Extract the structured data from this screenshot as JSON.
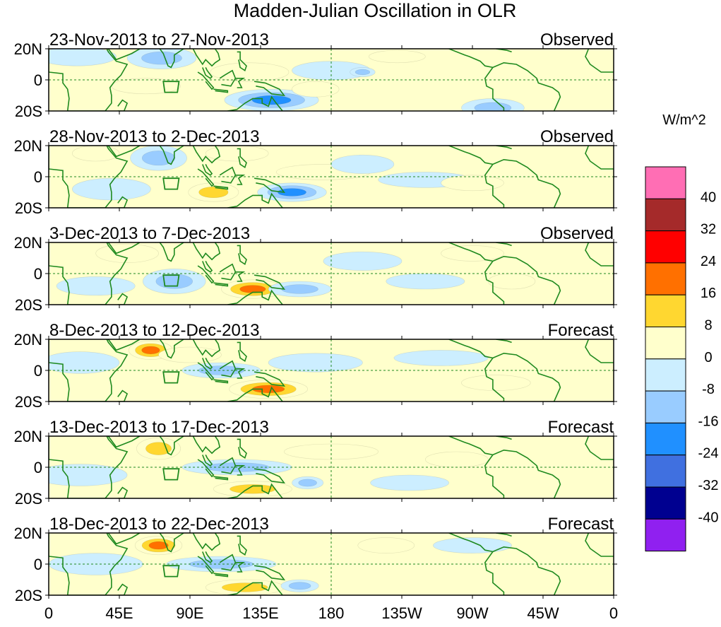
{
  "chart_data": {
    "type": "heatmap",
    "title": "Madden-Julian Oscillation in OLR",
    "colorbar": {
      "units": "W/m^2",
      "levels": [
        "40",
        "32",
        "24",
        "16",
        "8",
        "0",
        "-8",
        "-16",
        "-24",
        "-32",
        "-40"
      ],
      "colors": [
        "#ff6eb4",
        "#a52a2a",
        "#ff0000",
        "#ff7000",
        "#ffd730",
        "#ffffcc",
        "#cceeff",
        "#99ccff",
        "#2090ff",
        "#4070e0",
        "#000090",
        "#9020f0"
      ]
    },
    "x_ticks": [
      "0",
      "45E",
      "90E",
      "135E",
      "180",
      "135W",
      "90W",
      "45W",
      "0"
    ],
    "y_ticks": [
      "20N",
      "0",
      "20S"
    ],
    "xlim": [
      0,
      360
    ],
    "ylim": [
      -20,
      20
    ],
    "panels": [
      {
        "period": "23-Nov-2013 to 27-Nov-2013",
        "status": "Observed",
        "anomalies": [
          {
            "lon": 72,
            "lat": 14,
            "value": -18,
            "rlon": 22,
            "rlat": 7
          },
          {
            "lon": 128,
            "lat": 5,
            "value": 10,
            "rlon": 25,
            "rlat": 6
          },
          {
            "lon": 142,
            "lat": -13,
            "value": -27,
            "rlon": 30,
            "rlat": 7
          },
          {
            "lon": 62,
            "lat": -4,
            "value": 11,
            "rlon": 22,
            "rlat": 5
          },
          {
            "lon": 180,
            "lat": 6,
            "value": -10,
            "rlon": 25,
            "rlat": 6
          },
          {
            "lon": 200,
            "lat": 5,
            "value": -17,
            "rlon": 8,
            "rlat": 3
          },
          {
            "lon": 170,
            "lat": -6,
            "value": 11,
            "rlon": 15,
            "rlat": 5
          },
          {
            "lon": 222,
            "lat": 15,
            "value": 10,
            "rlon": 18,
            "rlat": 4
          },
          {
            "lon": 283,
            "lat": -18,
            "value": -12,
            "rlon": 20,
            "rlat": 6
          },
          {
            "lon": 18,
            "lat": 15,
            "value": -9,
            "rlon": 25,
            "rlat": 6
          }
        ]
      },
      {
        "period": "28-Nov-2013 to 2-Dec-2013",
        "status": "Observed",
        "anomalies": [
          {
            "lon": 105,
            "lat": -10,
            "value": 19,
            "rlon": 16,
            "rlat": 6
          },
          {
            "lon": 155,
            "lat": -10,
            "value": -22,
            "rlon": 22,
            "rlat": 6
          },
          {
            "lon": 70,
            "lat": 12,
            "value": -12,
            "rlon": 18,
            "rlat": 8
          },
          {
            "lon": 175,
            "lat": 3,
            "value": 11,
            "rlon": 30,
            "rlat": 5
          },
          {
            "lon": 120,
            "lat": 15,
            "value": 10,
            "rlon": 20,
            "rlat": 5
          },
          {
            "lon": 200,
            "lat": 8,
            "value": -10,
            "rlon": 20,
            "rlat": 6
          },
          {
            "lon": 240,
            "lat": -2,
            "value": -10,
            "rlon": 30,
            "rlat": 5
          },
          {
            "lon": 270,
            "lat": -4,
            "value": 11,
            "rlon": 20,
            "rlat": 5
          },
          {
            "lon": 30,
            "lat": 15,
            "value": 10,
            "rlon": 15,
            "rlat": 5
          },
          {
            "lon": 40,
            "lat": -8,
            "value": -11,
            "rlon": 25,
            "rlat": 7
          }
        ]
      },
      {
        "period": "3-Dec-2013 to 7-Dec-2013",
        "status": "Observed",
        "anomalies": [
          {
            "lon": 130,
            "lat": -10,
            "value": 20,
            "rlon": 20,
            "rlat": 6
          },
          {
            "lon": 50,
            "lat": 13,
            "value": 11,
            "rlon": 20,
            "rlat": 6
          },
          {
            "lon": 160,
            "lat": -10,
            "value": -18,
            "rlon": 20,
            "rlat": 5
          },
          {
            "lon": 80,
            "lat": -5,
            "value": -14,
            "rlon": 20,
            "rlat": 8
          },
          {
            "lon": 200,
            "lat": 8,
            "value": -11,
            "rlon": 25,
            "rlat": 6
          },
          {
            "lon": 270,
            "lat": 13,
            "value": 10,
            "rlon": 20,
            "rlat": 5
          },
          {
            "lon": 295,
            "lat": -5,
            "value": 11,
            "rlon": 15,
            "rlat": 5
          },
          {
            "lon": 240,
            "lat": -5,
            "value": -11,
            "rlon": 25,
            "rlat": 5
          },
          {
            "lon": 30,
            "lat": -8,
            "value": -10,
            "rlon": 25,
            "rlat": 6
          }
        ]
      },
      {
        "period": "8-Dec-2013 to 12-Dec-2013",
        "status": "Forecast",
        "anomalies": [
          {
            "lon": 65,
            "lat": 13,
            "value": 20,
            "rlon": 14,
            "rlat": 6
          },
          {
            "lon": 140,
            "lat": -12,
            "value": 22,
            "rlon": 25,
            "rlat": 6
          },
          {
            "lon": 110,
            "lat": 0,
            "value": -12,
            "rlon": 25,
            "rlat": 5
          },
          {
            "lon": 170,
            "lat": 5,
            "value": -9,
            "rlon": 30,
            "rlat": 6
          },
          {
            "lon": 250,
            "lat": 8,
            "value": -10,
            "rlon": 30,
            "rlat": 5
          },
          {
            "lon": 285,
            "lat": -8,
            "value": 11,
            "rlon": 22,
            "rlat": 5
          },
          {
            "lon": 90,
            "lat": 10,
            "value": 9,
            "rlon": 20,
            "rlat": 5
          },
          {
            "lon": 20,
            "lat": 5,
            "value": -10,
            "rlon": 25,
            "rlat": 7
          }
        ]
      },
      {
        "period": "13-Dec-2013 to 17-Dec-2013",
        "status": "Forecast",
        "anomalies": [
          {
            "lon": 70,
            "lat": 12,
            "value": 19,
            "rlon": 14,
            "rlat": 7
          },
          {
            "lon": 130,
            "lat": -14,
            "value": 18,
            "rlon": 25,
            "rlat": 5
          },
          {
            "lon": 120,
            "lat": 0,
            "value": -12,
            "rlon": 35,
            "rlat": 5
          },
          {
            "lon": 165,
            "lat": -10,
            "value": -19,
            "rlon": 10,
            "rlat": 4
          },
          {
            "lon": 180,
            "lat": 10,
            "value": 10,
            "rlon": 30,
            "rlat": 5
          },
          {
            "lon": 230,
            "lat": -10,
            "value": -11,
            "rlon": 25,
            "rlat": 5
          },
          {
            "lon": 260,
            "lat": 5,
            "value": 10,
            "rlon": 20,
            "rlat": 5
          },
          {
            "lon": 20,
            "lat": -5,
            "value": -10,
            "rlon": 30,
            "rlat": 7
          }
        ]
      },
      {
        "period": "18-Dec-2013 to 22-Dec-2013",
        "status": "Forecast",
        "anomalies": [
          {
            "lon": 70,
            "lat": 12,
            "value": 20,
            "rlon": 15,
            "rlat": 6
          },
          {
            "lon": 125,
            "lat": -15,
            "value": 12,
            "rlon": 25,
            "rlat": 5
          },
          {
            "lon": 110,
            "lat": 0,
            "value": -12,
            "rlon": 35,
            "rlat": 5
          },
          {
            "lon": 160,
            "lat": -14,
            "value": -18,
            "rlon": 12,
            "rlat": 4
          },
          {
            "lon": 215,
            "lat": 12,
            "value": 10,
            "rlon": 18,
            "rlat": 5
          },
          {
            "lon": 270,
            "lat": 12,
            "value": -9,
            "rlon": 25,
            "rlat": 5
          },
          {
            "lon": 30,
            "lat": 0,
            "value": -10,
            "rlon": 30,
            "rlat": 7
          }
        ]
      }
    ]
  }
}
